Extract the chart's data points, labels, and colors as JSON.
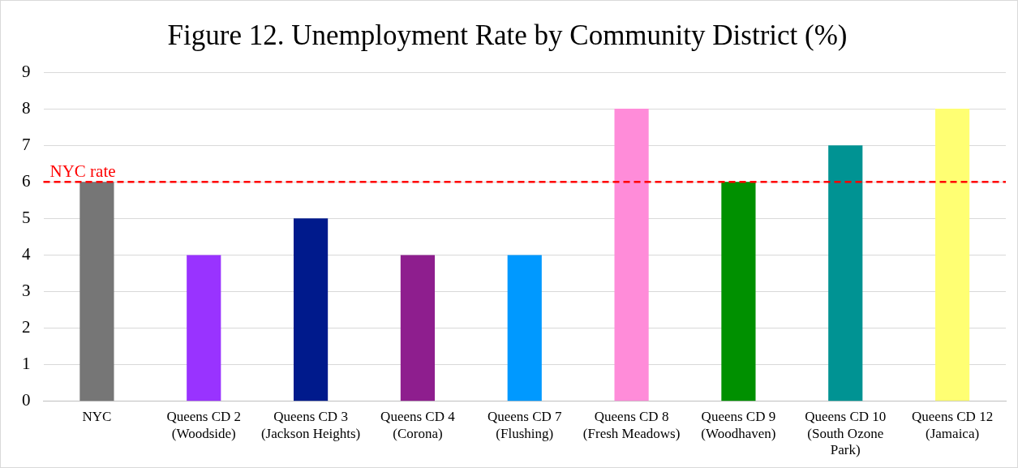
{
  "chart_data": {
    "type": "bar",
    "title": "Figure 12. Unemployment Rate by Community District (%)",
    "categories": [
      "NYC",
      "Queens CD 2 (Woodside)",
      "Queens CD 3 (Jackson Heights)",
      "Queens CD 4 (Corona)",
      "Queens CD 7 (Flushing)",
      "Queens CD 8 (Fresh Meadows)",
      "Queens CD 9 (Woodhaven)",
      "Queens CD 10 (South Ozone Park)",
      "Queens CD 12 (Jamaica)"
    ],
    "values": [
      6,
      4,
      5,
      4,
      4,
      8,
      6,
      7,
      8
    ],
    "colors": [
      "#767676",
      "#9933ff",
      "#001a8c",
      "#8e1e8e",
      "#0099ff",
      "#ff8cd9",
      "#009000",
      "#009393",
      "#ffff73"
    ],
    "ylim": [
      0,
      9
    ],
    "yticks": [
      0,
      1,
      2,
      3,
      4,
      5,
      6,
      7,
      8,
      9
    ],
    "grid": "y",
    "legend": false,
    "ref_lines": [
      {
        "axis": "y",
        "value": 6,
        "label": "NYC rate",
        "color": "#ff0000",
        "line_style": "dashed"
      }
    ]
  }
}
